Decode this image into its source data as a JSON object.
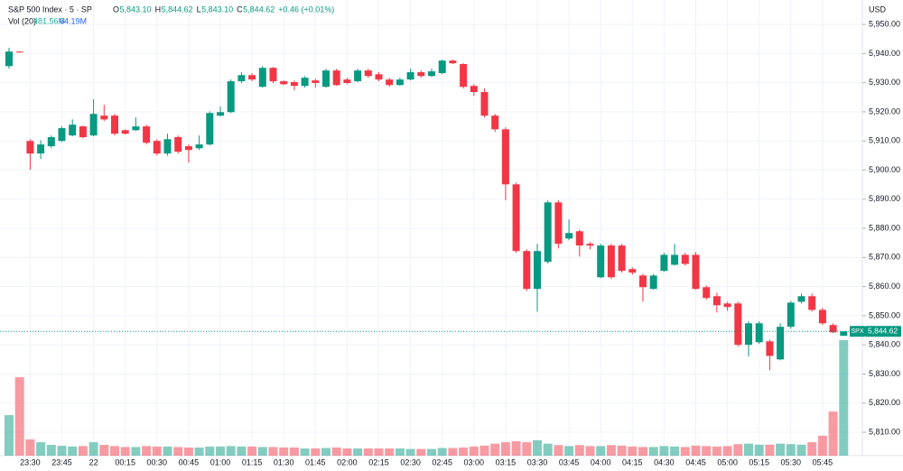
{
  "header": {
    "symbol": "S&P 500 Index · 5 · SP",
    "ohlc": [
      {
        "k": "O",
        "v": "5,843.10"
      },
      {
        "k": "H",
        "v": "5,844.62"
      },
      {
        "k": "L",
        "v": "5,843.10"
      },
      {
        "k": "C",
        "v": "5,844.62"
      }
    ],
    "change": "+0.46 (+0.01%)",
    "vol_title": "Vol (20)",
    "vol_value": "481.56M",
    "vol_ma": "64.19M"
  },
  "chart_data": {
    "type": "candlestick",
    "currency": "USD",
    "up_color": "#089981",
    "down_color": "#f23645",
    "grid": true,
    "last_symbol": "SPX",
    "last_price_label": "5,844.62",
    "ylim": [
      5803.5,
      5958.4
    ],
    "yticks": [
      {
        "value": 5810,
        "label": "5,810.00"
      },
      {
        "value": 5820,
        "label": "5,820.00"
      },
      {
        "value": 5830,
        "label": "5,830.00"
      },
      {
        "value": 5840,
        "label": "5,840.00"
      },
      {
        "value": 5850,
        "label": "5,850.00"
      },
      {
        "value": 5860,
        "label": "5,860.00"
      },
      {
        "value": 5870,
        "label": "5,870.00"
      },
      {
        "value": 5880,
        "label": "5,880.00"
      },
      {
        "value": 5890,
        "label": "5,890.00"
      },
      {
        "value": 5900,
        "label": "5,900.00"
      },
      {
        "value": 5910,
        "label": "5,910.00"
      },
      {
        "value": 5920,
        "label": "5,920.00"
      },
      {
        "value": 5930,
        "label": "5,930.00"
      },
      {
        "value": 5940,
        "label": "5,940.00"
      },
      {
        "value": 5950,
        "label": "5,950.00"
      }
    ],
    "categories": [
      null,
      null,
      "23:30",
      null,
      null,
      "23:45",
      null,
      null,
      "22",
      null,
      null,
      "00:15",
      null,
      null,
      "00:30",
      null,
      null,
      "00:45",
      null,
      null,
      "01:00",
      null,
      null,
      "01:15",
      null,
      null,
      "01:30",
      null,
      null,
      "01:45",
      null,
      null,
      "02:00",
      null,
      null,
      "02:15",
      null,
      null,
      "02:30",
      null,
      null,
      "02:45",
      null,
      null,
      "03:00",
      null,
      null,
      "03:15",
      null,
      null,
      "03:30",
      null,
      null,
      "03:45",
      null,
      null,
      "04:00",
      null,
      null,
      "04:15",
      null,
      null,
      "04:30",
      null,
      null,
      "04:45",
      null,
      null,
      "05:00",
      null,
      null,
      "05:15",
      null,
      null,
      "05:30",
      null,
      null,
      "05:45",
      null,
      null
    ],
    "ohlc": [
      [
        5935.7,
        5942,
        5934.8,
        5940.7
      ],
      [
        5940.7,
        5940.8,
        5940.3,
        5940.4
      ],
      [
        5910,
        5910.6,
        5900.1,
        5905.7
      ],
      [
        5905.7,
        5910.3,
        5903.8,
        5908.8
      ],
      [
        5908.2,
        5911.9,
        5907.5,
        5911.3
      ],
      [
        5910,
        5915,
        5909.7,
        5914.4
      ],
      [
        5911.9,
        5917.4,
        5911.6,
        5915.6
      ],
      [
        5915,
        5915.3,
        5910.9,
        5911.3
      ],
      [
        5911.9,
        5924.3,
        5911.6,
        5919.3
      ],
      [
        5918.7,
        5922.4,
        5916.8,
        5917.4
      ],
      [
        5918.7,
        5919.3,
        5911.9,
        5912.5
      ],
      [
        5913.7,
        5914,
        5912.2,
        5912.5
      ],
      [
        5913.7,
        5918.1,
        5913.4,
        5915
      ],
      [
        5915,
        5915.6,
        5908.8,
        5909.4
      ],
      [
        5910,
        5910.6,
        5905,
        5905.7
      ],
      [
        5905.7,
        5912.5,
        5905,
        5910.6
      ],
      [
        5911.3,
        5911.9,
        5905.7,
        5906.3
      ],
      [
        5908.2,
        5908.8,
        5902.6,
        5906.9
      ],
      [
        5907.5,
        5911.9,
        5906.9,
        5908.8
      ],
      [
        5908.8,
        5920.2,
        5908.5,
        5919.6
      ],
      [
        5918.7,
        5921.8,
        5918.4,
        5919.9
      ],
      [
        5919.9,
        5931.1,
        5919.6,
        5930.5
      ],
      [
        5930.5,
        5933.6,
        5929.9,
        5932.6
      ],
      [
        5932.6,
        5933.3,
        5930.5,
        5931.1
      ],
      [
        5928.6,
        5935.7,
        5928.3,
        5935.1
      ],
      [
        5935.1,
        5935.4,
        5929.9,
        5930.5
      ],
      [
        5930.5,
        5930.8,
        5929.2,
        5929.5
      ],
      [
        5930.2,
        5930.8,
        5927.4,
        5928.9
      ],
      [
        5928.9,
        5932.3,
        5928.3,
        5931.7
      ],
      [
        5930.8,
        5931.4,
        5928.3,
        5929.9
      ],
      [
        5928.6,
        5934.8,
        5928.3,
        5934.2
      ],
      [
        5934.2,
        5934.8,
        5928.9,
        5929.2
      ],
      [
        5931.1,
        5931.7,
        5929.5,
        5929.9
      ],
      [
        5930.5,
        5934.8,
        5930.2,
        5934.2
      ],
      [
        5934.2,
        5934.8,
        5931.7,
        5932.3
      ],
      [
        5932.9,
        5933.6,
        5930.5,
        5931.1
      ],
      [
        5931.1,
        5931.7,
        5928.6,
        5929.2
      ],
      [
        5929.2,
        5931.7,
        5928.9,
        5931.1
      ],
      [
        5931.1,
        5934.8,
        5930.8,
        5933.6
      ],
      [
        5933.6,
        5934.2,
        5931.7,
        5932.3
      ],
      [
        5932.3,
        5934.8,
        5932,
        5933.9
      ],
      [
        5933.3,
        5937.9,
        5932.9,
        5937.6
      ],
      [
        5937.6,
        5937.9,
        5936.4,
        5936.7
      ],
      [
        5936.4,
        5936.7,
        5928,
        5928.6
      ],
      [
        5928.9,
        5929.5,
        5925.5,
        5926.8
      ],
      [
        5926.8,
        5928,
        5918.1,
        5918.7
      ],
      [
        5918.7,
        5919.3,
        5913.1,
        5914
      ],
      [
        5914,
        5914.7,
        5889.6,
        5895.1
      ],
      [
        5895.1,
        5895.7,
        5871.6,
        5872.2
      ],
      [
        5872.2,
        5872.8,
        5858.5,
        5859.2
      ],
      [
        5859.2,
        5874.7,
        5851.4,
        5872.2
      ],
      [
        5868.5,
        5889.6,
        5867.9,
        5888.9
      ],
      [
        5888.9,
        5889.6,
        5873.1,
        5874.7
      ],
      [
        5876.5,
        5883.1,
        5875.9,
        5878.4
      ],
      [
        5879,
        5879.6,
        5870.3,
        5874.1
      ],
      [
        5874.7,
        5875.3,
        5872.8,
        5874.1
      ],
      [
        5863.2,
        5874.7,
        5862.9,
        5874.1
      ],
      [
        5874.1,
        5874.7,
        5862.6,
        5863.2
      ],
      [
        5874.1,
        5874.7,
        5864.8,
        5865.4
      ],
      [
        5866,
        5866.6,
        5864.1,
        5864.8
      ],
      [
        5863.8,
        5864.4,
        5854.8,
        5859.8
      ],
      [
        5859.2,
        5864.4,
        5858.9,
        5863.8
      ],
      [
        5865.4,
        5871.6,
        5865.1,
        5870.9
      ],
      [
        5867.5,
        5874.7,
        5867.2,
        5870.9
      ],
      [
        5870.9,
        5871.6,
        5867.2,
        5867.8
      ],
      [
        5870.9,
        5871.9,
        5858.9,
        5859.2
      ],
      [
        5859.8,
        5860.4,
        5855.5,
        5856.1
      ],
      [
        5856.7,
        5857.9,
        5851.1,
        5853.6
      ],
      [
        5854.2,
        5854.8,
        5851.7,
        5853
      ],
      [
        5854.2,
        5854.8,
        5839.4,
        5840
      ],
      [
        5840,
        5848.1,
        5836,
        5847.4
      ],
      [
        5840.9,
        5848.1,
        5840.3,
        5847.4
      ],
      [
        5841.2,
        5841.8,
        5831.3,
        5836.2
      ],
      [
        5835,
        5847.4,
        5834.7,
        5846.2
      ],
      [
        5846.2,
        5855.1,
        5845.5,
        5854.5
      ],
      [
        5854.8,
        5857.6,
        5854.2,
        5856.7
      ],
      [
        5856.7,
        5857.6,
        5851.4,
        5852
      ],
      [
        5852,
        5852.7,
        5846.8,
        5847.4
      ],
      [
        5846.8,
        5847.4,
        5844,
        5844.3
      ],
      [
        5843.1,
        5844.62,
        5843.1,
        5844.62
      ]
    ],
    "volume": [
      169,
      327,
      68,
      56,
      45,
      41,
      38,
      40,
      56,
      45,
      40,
      36,
      36,
      40,
      38,
      38,
      36,
      34,
      34,
      38,
      38,
      40,
      38,
      38,
      36,
      36,
      34,
      34,
      30,
      30,
      32,
      34,
      30,
      30,
      30,
      30,
      30,
      30,
      28,
      28,
      28,
      32,
      32,
      34,
      38,
      42,
      50,
      56,
      60,
      56,
      64,
      50,
      44,
      40,
      44,
      40,
      40,
      44,
      42,
      38,
      36,
      36,
      40,
      38,
      36,
      42,
      40,
      38,
      40,
      48,
      50,
      46,
      46,
      50,
      48,
      46,
      56,
      83,
      184,
      481.56
    ]
  }
}
